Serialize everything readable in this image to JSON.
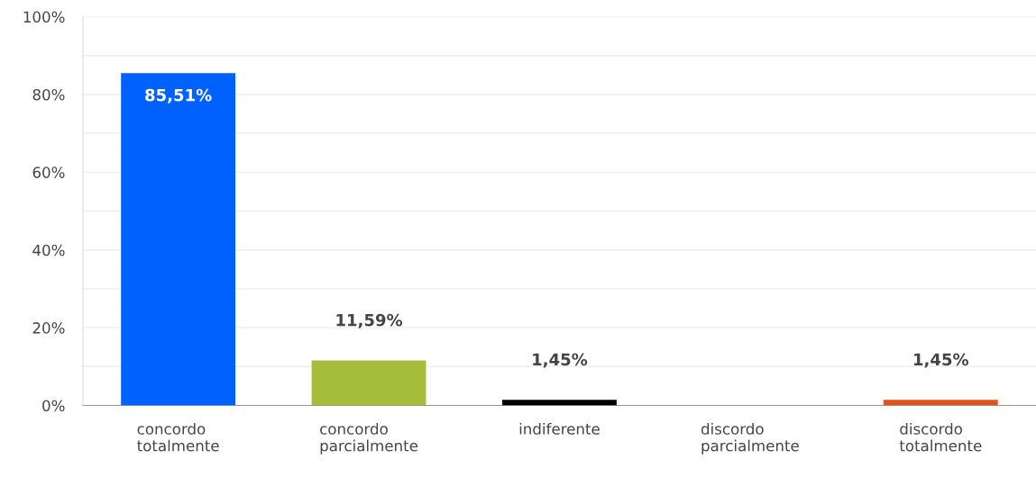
{
  "chart_data": {
    "type": "bar",
    "categories": [
      "concordo totalmente",
      "concordo parcialmente",
      "indiferente",
      "discordo parcialmente",
      "discordo totalmente"
    ],
    "values": [
      85.51,
      11.59,
      1.45,
      0,
      1.45
    ],
    "colors": [
      "#0061ff",
      "#a5bd3a",
      "#000000",
      "#7f7f7f",
      "#e0531f"
    ],
    "value_labels": [
      "85,51%",
      "11,59%",
      "1,45%",
      null,
      "1,45%"
    ],
    "ylim": [
      0,
      100
    ],
    "yticks": [
      {
        "value": 0,
        "label": "0%"
      },
      {
        "value": 10,
        "label": null
      },
      {
        "value": 20,
        "label": "20%"
      },
      {
        "value": 30,
        "label": null
      },
      {
        "value": 40,
        "label": "40%"
      },
      {
        "value": 50,
        "label": null
      },
      {
        "value": 60,
        "label": "60%"
      },
      {
        "value": 70,
        "label": null
      },
      {
        "value": 80,
        "label": "80%"
      },
      {
        "value": 90,
        "label": null
      },
      {
        "value": 100,
        "label": "100%"
      }
    ],
    "grid": "y"
  }
}
